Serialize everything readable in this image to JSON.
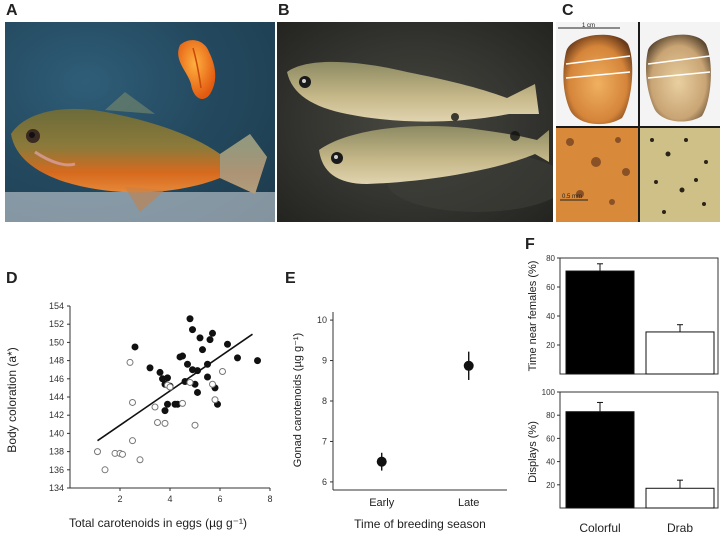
{
  "panels": {
    "A": "A",
    "B": "B",
    "C": "C",
    "D": "D",
    "E": "E",
    "F": "F"
  },
  "photo_c": {
    "scale_top": "1 cm",
    "scale_bottom": "0.5 mm"
  },
  "chart_data": [
    {
      "panel": "D",
      "type": "scatter",
      "xlabel": "Total carotenoids in eggs (µg g⁻¹)",
      "ylabel": "Body coloration (a*)",
      "xlim": [
        0,
        8
      ],
      "ylim": [
        134,
        154
      ],
      "xticks": [
        2,
        4,
        6,
        8
      ],
      "yticks": [
        134,
        136,
        138,
        140,
        142,
        144,
        146,
        148,
        150,
        152,
        154
      ],
      "series": [
        {
          "marker": "filled",
          "points": [
            [
              2.6,
              149.5
            ],
            [
              3.2,
              147.2
            ],
            [
              3.6,
              146.7
            ],
            [
              3.7,
              146.0
            ],
            [
              3.8,
              145.4
            ],
            [
              3.8,
              142.5
            ],
            [
              3.9,
              146.1
            ],
            [
              3.9,
              143.2
            ],
            [
              4.0,
              145.2
            ],
            [
              4.3,
              143.2
            ],
            [
              4.4,
              148.4
            ],
            [
              4.5,
              148.5
            ],
            [
              4.6,
              145.7
            ],
            [
              4.7,
              147.6
            ],
            [
              4.8,
              152.6
            ],
            [
              4.9,
              151.4
            ],
            [
              4.9,
              147.0
            ],
            [
              5.0,
              145.4
            ],
            [
              5.1,
              146.9
            ],
            [
              5.1,
              144.5
            ],
            [
              5.2,
              150.5
            ],
            [
              5.3,
              149.2
            ],
            [
              5.5,
              146.2
            ],
            [
              5.5,
              147.6
            ],
            [
              5.6,
              150.3
            ],
            [
              5.7,
              151.0
            ],
            [
              5.8,
              145.0
            ],
            [
              5.9,
              143.2
            ],
            [
              6.3,
              149.8
            ],
            [
              6.7,
              148.3
            ],
            [
              7.5,
              148.0
            ],
            [
              4.2,
              143.2
            ]
          ]
        },
        {
          "marker": "open",
          "points": [
            [
              1.1,
              138.0
            ],
            [
              1.4,
              136.0
            ],
            [
              1.8,
              137.8
            ],
            [
              2.0,
              137.8
            ],
            [
              2.1,
              137.7
            ],
            [
              2.4,
              147.8
            ],
            [
              2.5,
              143.4
            ],
            [
              2.5,
              139.2
            ],
            [
              2.8,
              137.1
            ],
            [
              3.4,
              142.9
            ],
            [
              3.5,
              141.2
            ],
            [
              3.8,
              141.1
            ],
            [
              3.9,
              145.3
            ],
            [
              4.0,
              145.1
            ],
            [
              4.5,
              143.3
            ],
            [
              4.8,
              145.6
            ],
            [
              5.0,
              140.9
            ],
            [
              5.7,
              145.4
            ],
            [
              5.8,
              143.7
            ],
            [
              6.1,
              146.8
            ]
          ]
        }
      ],
      "trendline": [
        [
          1.1,
          139.2
        ],
        [
          7.3,
          150.9
        ]
      ]
    },
    {
      "panel": "E",
      "type": "scatter",
      "xlabel": "Time of breeding season",
      "ylabel": "Gonad carotenoids (µg g⁻¹)",
      "categories": [
        "Early",
        "Late"
      ],
      "values": [
        6.5,
        8.87
      ],
      "errors": [
        0.22,
        0.35
      ],
      "ylim": [
        5.8,
        10.2
      ],
      "yticks": [
        6,
        7,
        8,
        9,
        10
      ]
    },
    {
      "panel": "F",
      "type": "bar",
      "categories": [
        "Colorful",
        "Drab"
      ],
      "subplots": [
        {
          "ylabel": "Time near females (%)",
          "values": [
            71,
            29
          ],
          "errors": [
            5,
            5
          ],
          "ylim": [
            0,
            80
          ],
          "yticks": [
            0,
            20,
            40,
            60,
            80
          ],
          "colors": [
            "#000000",
            "#ffffff"
          ]
        },
        {
          "ylabel": "Displays (%)",
          "values": [
            83,
            17
          ],
          "errors": [
            8,
            7
          ],
          "ylim": [
            0,
            100
          ],
          "yticks": [
            0,
            20,
            40,
            60,
            80,
            100
          ],
          "colors": [
            "#000000",
            "#ffffff"
          ]
        }
      ]
    }
  ]
}
